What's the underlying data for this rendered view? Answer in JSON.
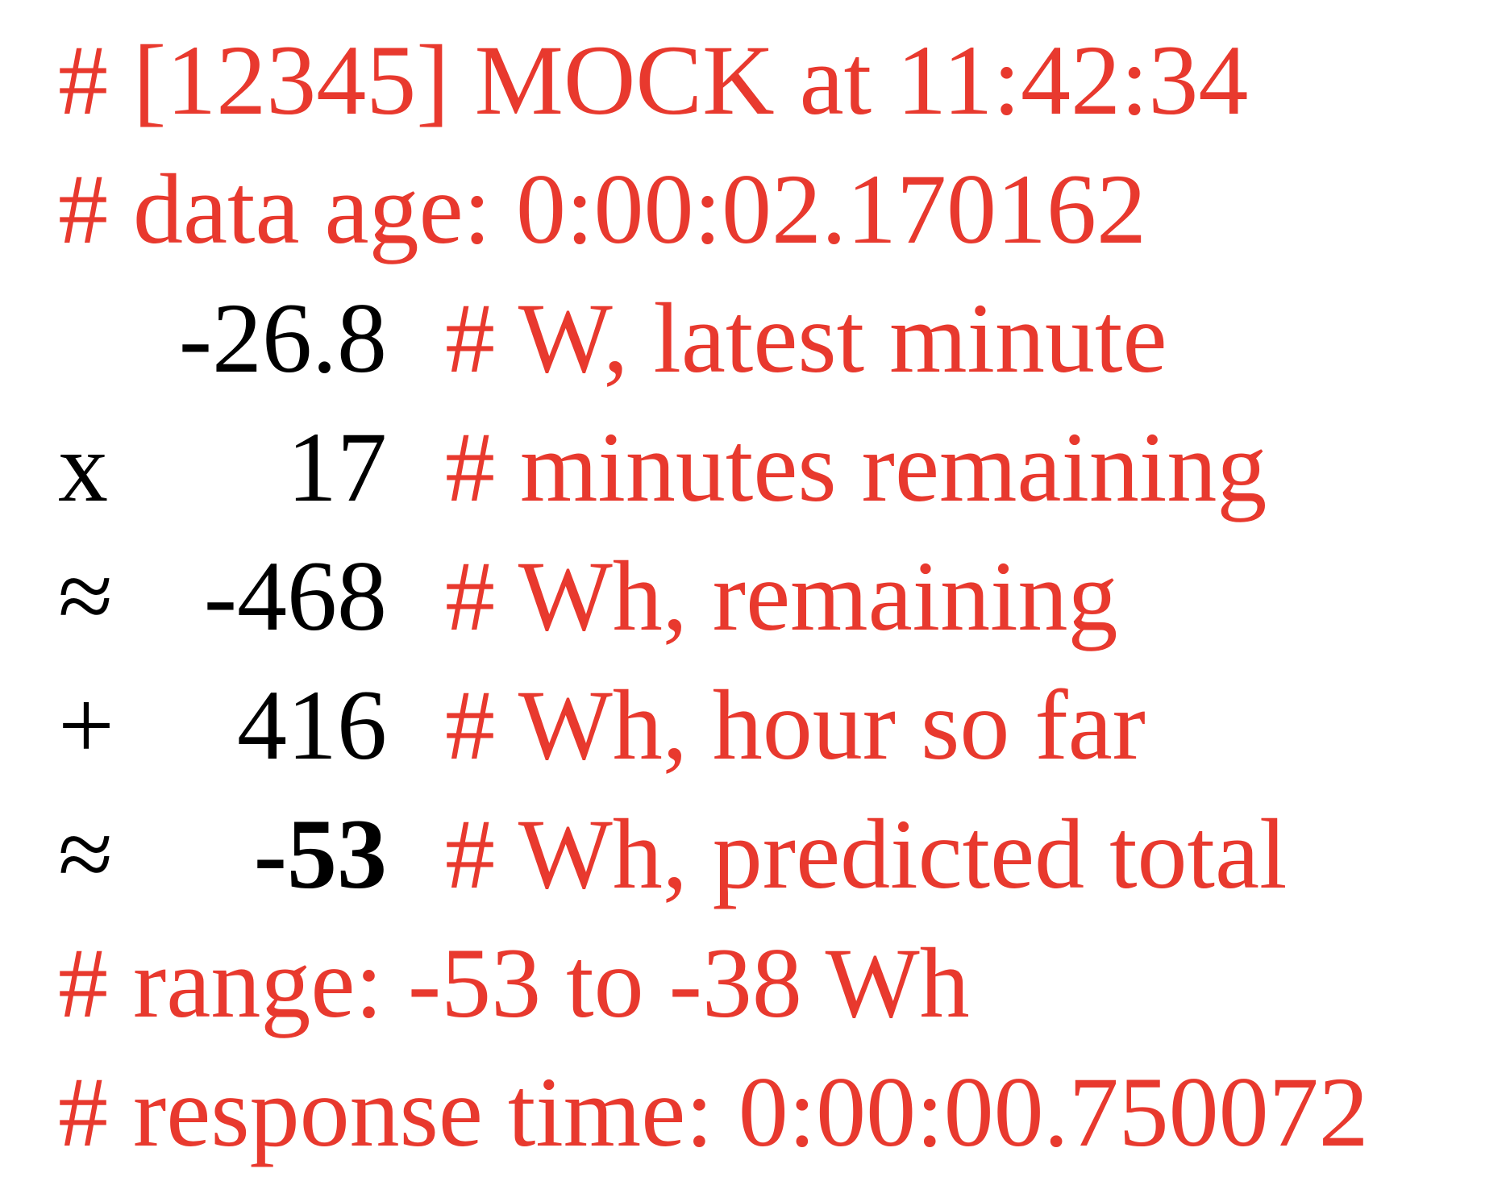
{
  "colors": {
    "comment": "#e8392e",
    "value": "#000000",
    "background": "#ffffff"
  },
  "header": {
    "title_line": "# [12345] MOCK at 11:42:34",
    "data_age_line": "# data age: 0:00:02.170162"
  },
  "calc_rows": [
    {
      "operator": "",
      "value": "-26.8",
      "comment": "# W, latest minute",
      "bold": false
    },
    {
      "operator": "x",
      "value": "17",
      "comment": "# minutes remaining",
      "bold": false
    },
    {
      "operator": "≈",
      "value": "-468",
      "comment": "# Wh, remaining",
      "bold": false
    },
    {
      "operator": "+",
      "value": "416",
      "comment": "# Wh, hour so far",
      "bold": false
    },
    {
      "operator": "≈",
      "value": "-53",
      "comment": "# Wh, predicted total",
      "bold": true
    }
  ],
  "footer": {
    "range_line": "# range: -53 to -38 Wh",
    "response_time_line": "# response time: 0:00:00.750072"
  }
}
